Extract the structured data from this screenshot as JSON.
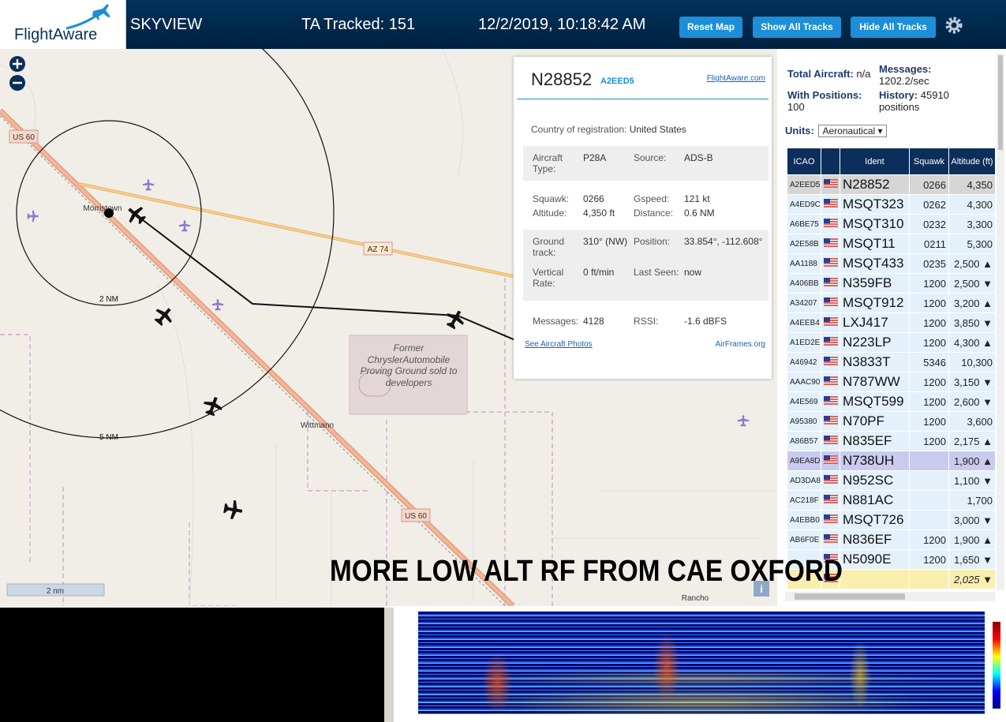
{
  "header": {
    "brand": "FlightAware",
    "app": "SKYVIEW",
    "tracked": "TA Tracked: 151",
    "datetime": "12/2/2019, 10:18:42 AM",
    "buttons": [
      "Reset Map",
      "Show All Tracks",
      "Hide All Tracks"
    ]
  },
  "map": {
    "roads": [
      "US 60",
      "AZ 74",
      "US 60"
    ],
    "places": [
      "Morristown",
      "Wittmann",
      "Rancho"
    ],
    "rings": [
      "2 NM",
      "5 NM"
    ],
    "area": "Former ChryslerAutomobile Proving Ground sold to developers",
    "scale": "2 nm",
    "info": "i"
  },
  "caption": "MORE LOW ALT RF FROM CAE OXFORD",
  "selected": {
    "ident": "N28852",
    "icao": "A2EED5",
    "link": "FlightAware.com",
    "country_label": "Country of registration:",
    "country": "United States",
    "sections": [
      [
        [
          "Aircraft Type:",
          "P28A"
        ],
        [
          "Source:",
          "ADS-B"
        ]
      ],
      [
        [
          "Squawk:",
          "0266"
        ],
        [
          "Gspeed:",
          "121 kt"
        ],
        [
          "Altitude:",
          "4,350 ft"
        ],
        [
          "Distance:",
          "0.6 NM"
        ]
      ],
      [
        [
          "Ground track:",
          "310° (NW)"
        ],
        [
          "Position:",
          "33.854°, -112.608°"
        ],
        [
          "Vertical Rate:",
          "0 ft/min"
        ],
        [
          "Last Seen:",
          "now"
        ]
      ],
      [
        [
          "Messages:",
          "4128"
        ],
        [
          "RSSI:",
          "-1.6 dBFS"
        ]
      ]
    ],
    "photos": "See Aircraft Photos",
    "airframes": "AirFrames.org"
  },
  "stats": {
    "total_label": "Total Aircraft:",
    "total": "n/a",
    "messages_label": "Messages:",
    "messages": "1202.2/sec",
    "positions_label": "With Positions:",
    "positions": "100",
    "history_label": "History:",
    "history": "45910 positions",
    "units_label": "Units:",
    "units": "Aeronautical"
  },
  "table": {
    "columns": [
      "ICAO",
      "Ident",
      "Squawk",
      "Altitude (ft)"
    ],
    "rows": [
      {
        "icao": "A2EED5",
        "ident": "N28852",
        "squawk": "0266",
        "altitude": "4,350"
      },
      {
        "icao": "A4ED9C",
        "ident": "MSQT323",
        "squawk": "0262",
        "altitude": "4,300"
      },
      {
        "icao": "A6BE75",
        "ident": "MSQT310",
        "squawk": "0232",
        "altitude": "3,300"
      },
      {
        "icao": "A2E58B",
        "ident": "MSQT11",
        "squawk": "0211",
        "altitude": "5,300"
      },
      {
        "icao": "AA1188",
        "ident": "MSQT433",
        "squawk": "0235",
        "altitude": "2,500",
        "trend": "▲"
      },
      {
        "icao": "A406BB",
        "ident": "N359FB",
        "squawk": "1200",
        "altitude": "2,500",
        "trend": "▼"
      },
      {
        "icao": "A34207",
        "ident": "MSQT912",
        "squawk": "1200",
        "altitude": "3,200",
        "trend": "▲"
      },
      {
        "icao": "A4EEB4",
        "ident": "LXJ417",
        "squawk": "1200",
        "altitude": "3,850",
        "trend": "▼"
      },
      {
        "icao": "A1ED2E",
        "ident": "N223LP",
        "squawk": "1200",
        "altitude": "4,300",
        "trend": "▲"
      },
      {
        "icao": "A46942",
        "ident": "N3833T",
        "squawk": "5346",
        "altitude": "10,300"
      },
      {
        "icao": "AAAC90",
        "ident": "N787WW",
        "squawk": "1200",
        "altitude": "3,150",
        "trend": "▼"
      },
      {
        "icao": "A4E569",
        "ident": "MSQT599",
        "squawk": "1200",
        "altitude": "2,600",
        "trend": "▼"
      },
      {
        "icao": "A95380",
        "ident": "N70PF",
        "squawk": "1200",
        "altitude": "3,600"
      },
      {
        "icao": "A86B57",
        "ident": "N835EF",
        "squawk": "1200",
        "altitude": "2,175",
        "trend": "▲"
      },
      {
        "icao": "A9EA8D",
        "ident": "N738UH",
        "altitude": "1,900",
        "trend": "▲"
      },
      {
        "icao": "AD3DA8",
        "ident": "N952SC",
        "altitude": "1,100",
        "trend": "▼"
      },
      {
        "icao": "AC218F",
        "ident": "N881AC",
        "altitude": "1,700"
      },
      {
        "icao": "A4EBB0",
        "ident": "MSQT726",
        "altitude": "3,000",
        "trend": "▼"
      },
      {
        "icao": "AB6F0E",
        "ident": "N836EF",
        "squawk": "1200",
        "altitude": "1,900",
        "trend": "▲"
      },
      {
        "ident": "N5090E",
        "squawk": "1200",
        "altitude": "1,650",
        "trend": "▼"
      },
      {
        "altitude": "2,025",
        "trend": "▼"
      }
    ]
  }
}
